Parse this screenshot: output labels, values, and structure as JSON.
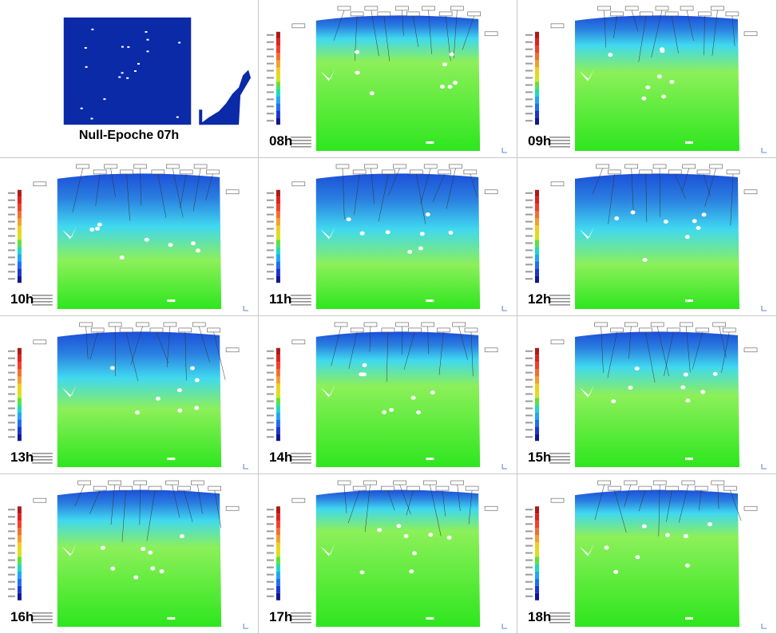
{
  "figure": {
    "panels": [
      {
        "id": "07h",
        "label": "Null-Epoche 07h",
        "kind": "reference",
        "cloud_color": "#0b2aa8"
      },
      {
        "id": "08h",
        "label": "08h",
        "kind": "deviation",
        "blue_depth": 0.22
      },
      {
        "id": "09h",
        "label": "09h",
        "kind": "deviation",
        "blue_depth": 0.3
      },
      {
        "id": "10h",
        "label": "10h",
        "kind": "deviation",
        "blue_depth": 0.52
      },
      {
        "id": "11h",
        "label": "11h",
        "kind": "deviation",
        "blue_depth": 0.55
      },
      {
        "id": "12h",
        "label": "12h",
        "kind": "deviation",
        "blue_depth": 0.55
      },
      {
        "id": "13h",
        "label": "13h",
        "kind": "deviation",
        "blue_depth": 0.45
      },
      {
        "id": "14h",
        "label": "14h",
        "kind": "deviation",
        "blue_depth": 0.28
      },
      {
        "id": "15h",
        "label": "15h",
        "kind": "deviation",
        "blue_depth": 0.35
      },
      {
        "id": "16h",
        "label": "16h",
        "kind": "deviation",
        "blue_depth": 0.3
      },
      {
        "id": "17h",
        "label": "17h",
        "kind": "deviation",
        "blue_depth": 0.18
      },
      {
        "id": "18h",
        "label": "18h",
        "kind": "deviation",
        "blue_depth": 0.22
      }
    ],
    "colors": {
      "green": "#2ee61e",
      "light_green": "#8cf05a",
      "cyan": "#40d8f0",
      "blue": "#2a7fe0",
      "deep_blue": "#1c4fd8",
      "legend_scale": [
        "#b01818",
        "#e02020",
        "#f04028",
        "#f07030",
        "#f0a030",
        "#f0d020",
        "#d8e020",
        "#60e040",
        "#20d8c0",
        "#20a8f0",
        "#2070f0",
        "#1838d0",
        "#101890"
      ]
    }
  }
}
